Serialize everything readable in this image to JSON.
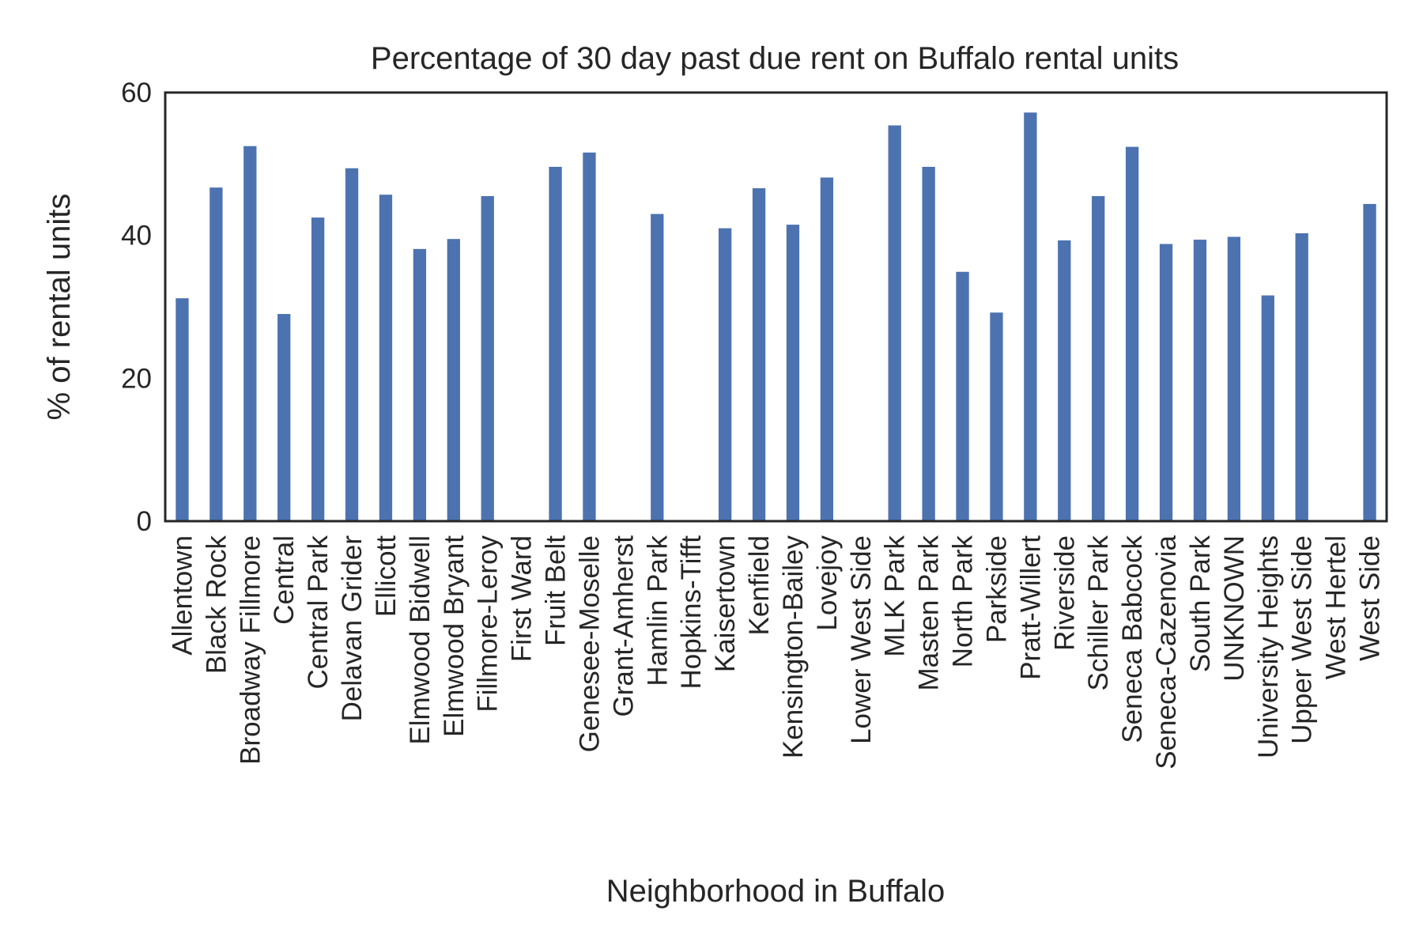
{
  "chart_data": {
    "type": "bar",
    "title": "Percentage of 30 day past due rent on Buffalo rental units",
    "xlabel": "Neighborhood in Buffalo",
    "ylabel": "% of rental units",
    "ylim": [
      0,
      60
    ],
    "yticks": [
      0,
      20,
      40,
      60
    ],
    "grid": false,
    "legend": "none",
    "bar_color": "#4c72b0",
    "categories": [
      "Allentown",
      "Black Rock",
      "Broadway Fillmore",
      "Central",
      "Central Park",
      "Delavan Grider",
      "Ellicott",
      "Elmwood Bidwell",
      "Elmwood Bryant",
      "Fillmore-Leroy",
      "First Ward",
      "Fruit Belt",
      "Genesee-Moselle",
      "Grant-Amherst",
      "Hamlin Park",
      "Hopkins-Tifft",
      "Kaisertown",
      "Kenfield",
      "Kensington-Bailey",
      "Lovejoy",
      "Lower West Side",
      "MLK Park",
      "Masten Park",
      "North Park",
      "Parkside",
      "Pratt-Willert",
      "Riverside",
      "Schiller Park",
      "Seneca Babcock",
      "Seneca-Cazenovia",
      "South Park",
      "UNKNOWN",
      "University Heights",
      "Upper West Side",
      "West Hertel",
      "West Side"
    ],
    "values": [
      31.2,
      46.7,
      52.5,
      29.0,
      42.5,
      49.4,
      45.7,
      38.1,
      39.5,
      45.5,
      0,
      49.6,
      51.6,
      0,
      43.0,
      0,
      41.0,
      46.6,
      41.5,
      48.1,
      0,
      55.4,
      49.6,
      34.9,
      29.2,
      57.2,
      39.3,
      45.5,
      52.4,
      38.8,
      39.4,
      39.8,
      31.6,
      40.3,
      0,
      44.4
    ]
  }
}
